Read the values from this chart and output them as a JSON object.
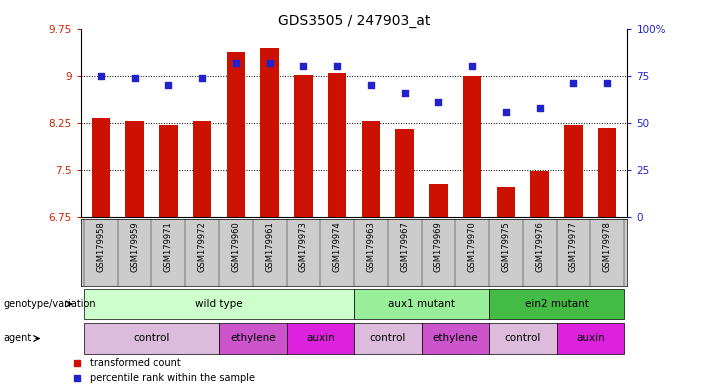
{
  "title": "GDS3505 / 247903_at",
  "samples": [
    "GSM179958",
    "GSM179959",
    "GSM179971",
    "GSM179972",
    "GSM179960",
    "GSM179961",
    "GSM179973",
    "GSM179974",
    "GSM179963",
    "GSM179967",
    "GSM179969",
    "GSM179970",
    "GSM179975",
    "GSM179976",
    "GSM179977",
    "GSM179978"
  ],
  "bar_values": [
    8.32,
    8.28,
    8.22,
    8.28,
    9.38,
    9.44,
    9.01,
    9.04,
    8.28,
    8.15,
    7.28,
    9.0,
    7.22,
    7.48,
    8.22,
    8.17
  ],
  "percentile_values": [
    75,
    74,
    70,
    74,
    82,
    82,
    80,
    80,
    70,
    66,
    61,
    80,
    56,
    58,
    71,
    71
  ],
  "bar_color": "#cc1100",
  "percentile_color": "#2222cc",
  "ylim_left": [
    6.75,
    9.75
  ],
  "ylim_right": [
    0,
    100
  ],
  "yticks_left": [
    6.75,
    7.5,
    8.25,
    9.0,
    9.75
  ],
  "yticks_right": [
    0,
    25,
    50,
    75,
    100
  ],
  "ytick_labels_left": [
    "6.75",
    "7.5",
    "8.25",
    "9",
    "9.75"
  ],
  "ytick_labels_right": [
    "0",
    "25",
    "50",
    "75",
    "100%"
  ],
  "hlines": [
    7.5,
    8.25,
    9.0
  ],
  "genotype_groups": [
    {
      "label": "wild type",
      "start": 0,
      "end": 7,
      "color": "#ccffcc"
    },
    {
      "label": "aux1 mutant",
      "start": 8,
      "end": 11,
      "color": "#99ee99"
    },
    {
      "label": "ein2 mutant",
      "start": 12,
      "end": 15,
      "color": "#44bb44"
    }
  ],
  "agent_groups": [
    {
      "label": "control",
      "start": 0,
      "end": 3,
      "color": "#ddbbdd"
    },
    {
      "label": "ethylene",
      "start": 4,
      "end": 5,
      "color": "#cc55cc"
    },
    {
      "label": "auxin",
      "start": 6,
      "end": 7,
      "color": "#dd22dd"
    },
    {
      "label": "control",
      "start": 8,
      "end": 9,
      "color": "#ddbbdd"
    },
    {
      "label": "ethylene",
      "start": 10,
      "end": 11,
      "color": "#cc55cc"
    },
    {
      "label": "control",
      "start": 12,
      "end": 13,
      "color": "#ddbbdd"
    },
    {
      "label": "auxin",
      "start": 14,
      "end": 15,
      "color": "#dd22dd"
    }
  ],
  "left_ylabel_color": "#cc2200",
  "right_ylabel_color": "#2222cc",
  "sample_box_color": "#cccccc",
  "background_color": "#ffffff",
  "legend_red_label": "transformed count",
  "legend_blue_label": "percentile rank within the sample"
}
